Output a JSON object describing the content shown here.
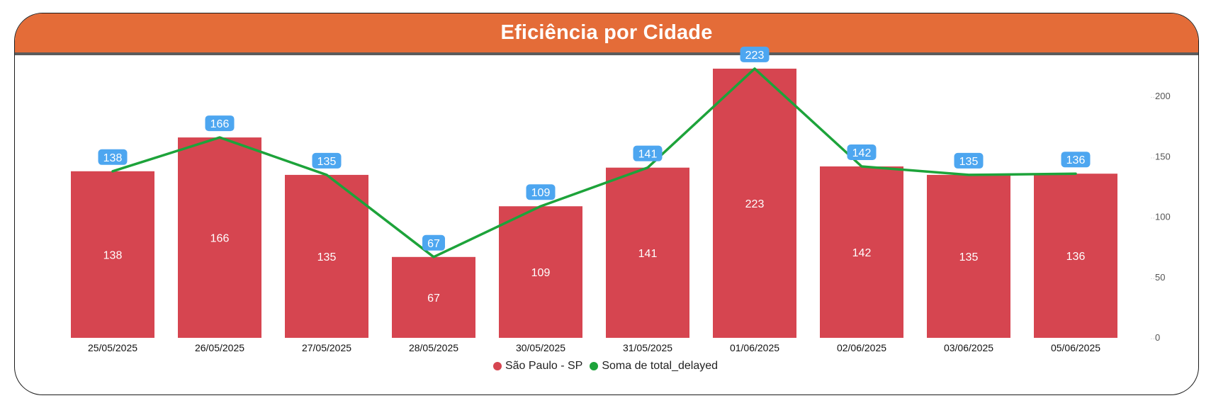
{
  "title": "Eficiência por Cidade",
  "colors": {
    "header": "#E46C38",
    "bar": "#D64550",
    "line": "#1DA33A",
    "label_bg": "#4DA6F0"
  },
  "chart_data": {
    "type": "bar",
    "categories": [
      "25/05/2025",
      "26/05/2025",
      "27/05/2025",
      "28/05/2025",
      "30/05/2025",
      "31/05/2025",
      "01/06/2025",
      "02/06/2025",
      "03/06/2025",
      "05/06/2025"
    ],
    "series": [
      {
        "name": "São Paulo  - SP",
        "type": "bar",
        "values": [
          138,
          166,
          135,
          67,
          109,
          141,
          223,
          142,
          135,
          136
        ]
      },
      {
        "name": "Soma de total_delayed",
        "type": "line",
        "values": [
          138,
          166,
          135,
          67,
          109,
          141,
          223,
          142,
          135,
          136
        ]
      }
    ],
    "yticks": [
      0,
      50,
      100,
      150,
      200
    ],
    "ylim": [
      0,
      230
    ],
    "legend_position": "bottom-center",
    "grid": false
  }
}
